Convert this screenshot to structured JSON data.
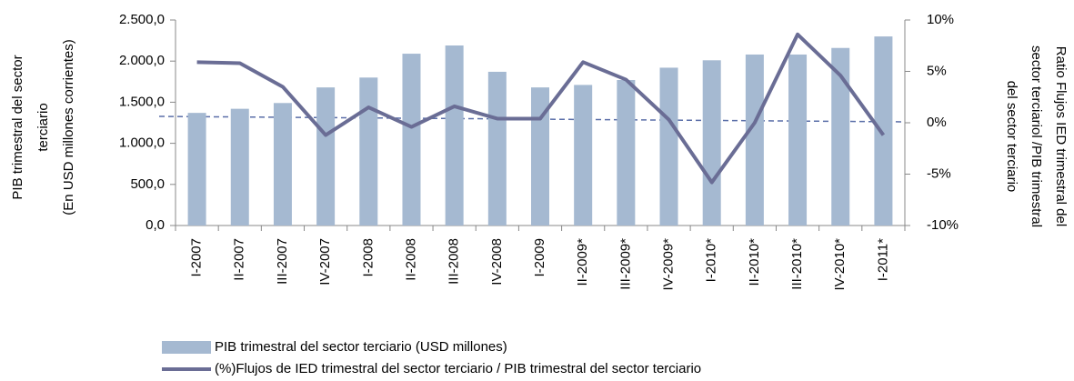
{
  "chart_data": {
    "type": "bar_line",
    "categories": [
      "I-2007",
      "II-2007",
      "III-2007",
      "IV-2007",
      "I-2008",
      "II-2008",
      "III-2008",
      "IV-2008",
      "I-2009",
      "II-2009*",
      "III-2009*",
      "IV-2009*",
      "I-2010*",
      "II-2010*",
      "III-2010*",
      "IV-2010*",
      "I-2011*"
    ],
    "series": [
      {
        "name": "PIB trimestral del sector terciario (USD millones)",
        "type": "bar",
        "color": "#a5b9d1",
        "values": [
          1370,
          1420,
          1490,
          1680,
          1800,
          2090,
          2190,
          1870,
          1680,
          1710,
          1770,
          1920,
          2010,
          2080,
          2080,
          2160,
          2300
        ]
      },
      {
        "name": "(%)Flujos de IED trimestral del sector terciario / PIB trimestral del sector terciario",
        "type": "line",
        "color": "#6a6d95",
        "axis": "y2",
        "values": [
          5.9,
          5.8,
          3.5,
          -1.2,
          1.5,
          -0.4,
          1.6,
          0.4,
          0.4,
          5.9,
          4.2,
          0.3,
          -5.8,
          0,
          8.6,
          4.6,
          -1.2
        ]
      }
    ],
    "ylabel": [
      "PIB trimestral del sector",
      "terciario",
      "(En USD millones corrientes)"
    ],
    "y2label": [
      "Ratio Flujos IED trimestral del",
      "sector terciariol /PIB trimestral",
      "del sector terciario"
    ],
    "ylim": [
      0,
      2500
    ],
    "yticks": [
      {
        "value": 0,
        "label": "0,0"
      },
      {
        "value": 500,
        "label": "500,0"
      },
      {
        "value": 1000,
        "label": "1.000,0"
      },
      {
        "value": 1500,
        "label": "1.500,0"
      },
      {
        "value": 2000,
        "label": "2.000,0"
      },
      {
        "value": 2500,
        "label": "2.500,0"
      }
    ],
    "y2lim": [
      -10,
      10
    ],
    "y2ticks": [
      {
        "value": -10,
        "label": "-10%"
      },
      {
        "value": -5,
        "label": "-5%"
      },
      {
        "value": 0,
        "label": "0%"
      },
      {
        "value": 5,
        "label": "5%"
      },
      {
        "value": 10,
        "label": "10%"
      }
    ],
    "legend": "bottom"
  }
}
